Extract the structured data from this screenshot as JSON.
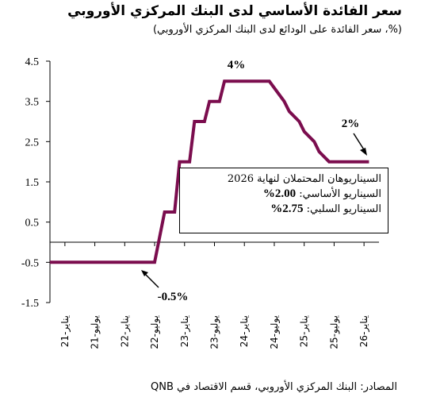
{
  "title": "سعر الفائدة الأساسي لدى البنك المركزي الأوروبي",
  "subtitle": "(%، سعر الفائدة على الودائع لدى البنك المركزي الأوروبي)",
  "source": "المصادر: البنك المركزي الأوروبي، قسم الاقتصاد في QNB",
  "annotations": {
    "low": "-0.5%",
    "peak": "4%",
    "end": "2%"
  },
  "infobox": {
    "heading": "السيناريوهان المحتملان لنهاية 2026",
    "base_label": "السيناريو الأساسي:",
    "base_value": "2.00%",
    "bear_label": "السيناريو السلبي:",
    "bear_value": "2.75%"
  },
  "colors": {
    "line": "#7B0D4E",
    "axis": "#000000"
  },
  "chart_data": {
    "type": "line",
    "title": "سعر الفائدة الأساسي لدى البنك المركزي الأوروبي",
    "subtitle": "(%، سعر الفائدة على الودائع لدى البنك المركزي الأوروبي)",
    "ylim": [
      -1.5,
      4.5
    ],
    "y_ticks": [
      -1.5,
      -0.5,
      0.5,
      1.5,
      2.5,
      3.5,
      4.5
    ],
    "y_tick_labels": [
      "-1.5",
      "-0.5",
      "0.5",
      "1.5",
      "2.5",
      "3.5",
      "4.5"
    ],
    "x_ticks": [
      "2021-01",
      "2021-07",
      "2022-01",
      "2022-07",
      "2023-01",
      "2023-07",
      "2024-01",
      "2024-07",
      "2025-01",
      "2025-07",
      "2026-01"
    ],
    "x_tick_labels": [
      "يناير-21",
      "يوليو-21",
      "يناير-22",
      "يوليو-22",
      "يناير-23",
      "يوليو-23",
      "يناير-24",
      "يوليو-24",
      "يناير-25",
      "يوليو-25",
      "يناير-26"
    ],
    "xlim": [
      "2020-10",
      "2026-04"
    ],
    "grid": false,
    "series": [
      {
        "x": [
          "2020-10",
          "2022-07",
          "2022-09",
          "2022-11",
          "2022-12",
          "2023-02",
          "2023-03",
          "2023-05",
          "2023-06",
          "2023-08",
          "2023-09",
          "2024-06",
          "2024-09",
          "2024-10",
          "2024-12",
          "2025-01",
          "2025-03",
          "2025-04",
          "2025-06",
          "2026-02"
        ],
        "y": [
          -0.5,
          -0.5,
          0.75,
          0.75,
          2.0,
          2.0,
          3.0,
          3.0,
          3.5,
          3.5,
          4.0,
          4.0,
          3.5,
          3.25,
          3.0,
          2.75,
          2.5,
          2.25,
          2.0,
          2.0
        ]
      }
    ]
  }
}
